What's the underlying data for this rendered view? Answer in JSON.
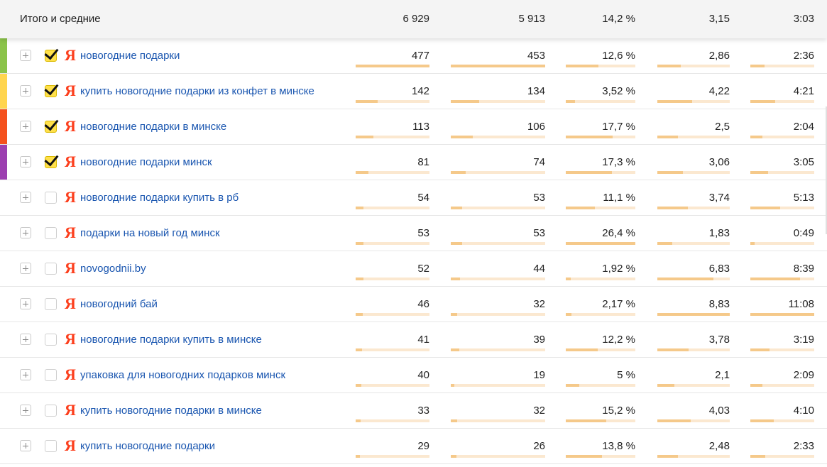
{
  "header": {
    "title": "Итого и средние",
    "v1": "6 929",
    "v2": "5 913",
    "v3": "14,2 %",
    "v4": "3,15",
    "v5": "3:03"
  },
  "colors": {
    "link": "#1a56b0",
    "yandex": "#fc3f1d",
    "checkbox_checked": "#ffe04a",
    "bar_track": "#fbe8d0",
    "bar_fill": "#f5c98a"
  },
  "rows": [
    {
      "label": "новогодние подарки",
      "checked": true,
      "stripe": "#8bc34a",
      "v1": "477",
      "v2": "453",
      "v3": "12,6 %",
      "v4": "2,86",
      "v5": "2:36",
      "f1": 1.0,
      "f2": 1.0,
      "f3": 0.47,
      "f4": 0.32,
      "f5": 0.22
    },
    {
      "label": "купить новогодние подарки из конфет в минске",
      "checked": true,
      "stripe": "#ffd54f",
      "v1": "142",
      "v2": "134",
      "v3": "3,52 %",
      "v4": "4,22",
      "v5": "4:21",
      "f1": 0.3,
      "f2": 0.3,
      "f3": 0.13,
      "f4": 0.48,
      "f5": 0.39
    },
    {
      "label": "новогодние подарки в минске",
      "checked": true,
      "stripe": "#f4511e",
      "v1": "113",
      "v2": "106",
      "v3": "17,7 %",
      "v4": "2,5",
      "v5": "2:04",
      "f1": 0.24,
      "f2": 0.23,
      "f3": 0.67,
      "f4": 0.28,
      "f5": 0.19
    },
    {
      "label": "новогодние подарки минск",
      "checked": true,
      "stripe": "#9c3fb0",
      "v1": "81",
      "v2": "74",
      "v3": "17,3 %",
      "v4": "3,06",
      "v5": "3:05",
      "f1": 0.17,
      "f2": 0.16,
      "f3": 0.66,
      "f4": 0.35,
      "f5": 0.28
    },
    {
      "label": "новогодние подарки купить в рб",
      "checked": false,
      "stripe": "",
      "v1": "54",
      "v2": "53",
      "v3": "11,1 %",
      "v4": "3,74",
      "v5": "5:13",
      "f1": 0.11,
      "f2": 0.12,
      "f3": 0.42,
      "f4": 0.42,
      "f5": 0.47
    },
    {
      "label": "подарки на новый год минск",
      "checked": false,
      "stripe": "",
      "v1": "53",
      "v2": "53",
      "v3": "26,4 %",
      "v4": "1,83",
      "v5": "0:49",
      "f1": 0.11,
      "f2": 0.12,
      "f3": 1.0,
      "f4": 0.21,
      "f5": 0.07
    },
    {
      "label": "novogodnii.by",
      "checked": false,
      "stripe": "",
      "v1": "52",
      "v2": "44",
      "v3": "1,92 %",
      "v4": "6,83",
      "v5": "8:39",
      "f1": 0.11,
      "f2": 0.1,
      "f3": 0.07,
      "f4": 0.77,
      "f5": 0.78
    },
    {
      "label": "новогодний бай",
      "checked": false,
      "stripe": "",
      "v1": "46",
      "v2": "32",
      "v3": "2,17 %",
      "v4": "8,83",
      "v5": "11:08",
      "f1": 0.1,
      "f2": 0.07,
      "f3": 0.08,
      "f4": 1.0,
      "f5": 1.0
    },
    {
      "label": "новогодние подарки купить в минске",
      "checked": false,
      "stripe": "",
      "v1": "41",
      "v2": "39",
      "v3": "12,2 %",
      "v4": "3,78",
      "v5": "3:19",
      "f1": 0.09,
      "f2": 0.09,
      "f3": 0.46,
      "f4": 0.43,
      "f5": 0.3
    },
    {
      "label": "упаковка для новогодних подарков минск",
      "checked": false,
      "stripe": "",
      "v1": "40",
      "v2": "19",
      "v3": "5 %",
      "v4": "2,1",
      "v5": "2:09",
      "f1": 0.08,
      "f2": 0.04,
      "f3": 0.19,
      "f4": 0.24,
      "f5": 0.19
    },
    {
      "label": "купить новогодние подарки в минске",
      "checked": false,
      "stripe": "",
      "v1": "33",
      "v2": "32",
      "v3": "15,2 %",
      "v4": "4,03",
      "v5": "4:10",
      "f1": 0.07,
      "f2": 0.07,
      "f3": 0.58,
      "f4": 0.46,
      "f5": 0.37
    },
    {
      "label": "купить новогодние подарки",
      "checked": false,
      "stripe": "",
      "v1": "29",
      "v2": "26",
      "v3": "13,8 %",
      "v4": "2,48",
      "v5": "2:33",
      "f1": 0.06,
      "f2": 0.06,
      "f3": 0.52,
      "f4": 0.28,
      "f5": 0.23
    }
  ],
  "icons": {
    "expand": "plus-icon",
    "checkbox": "checkbox",
    "source": "yandex-icon"
  },
  "yandex_glyph": "Я"
}
